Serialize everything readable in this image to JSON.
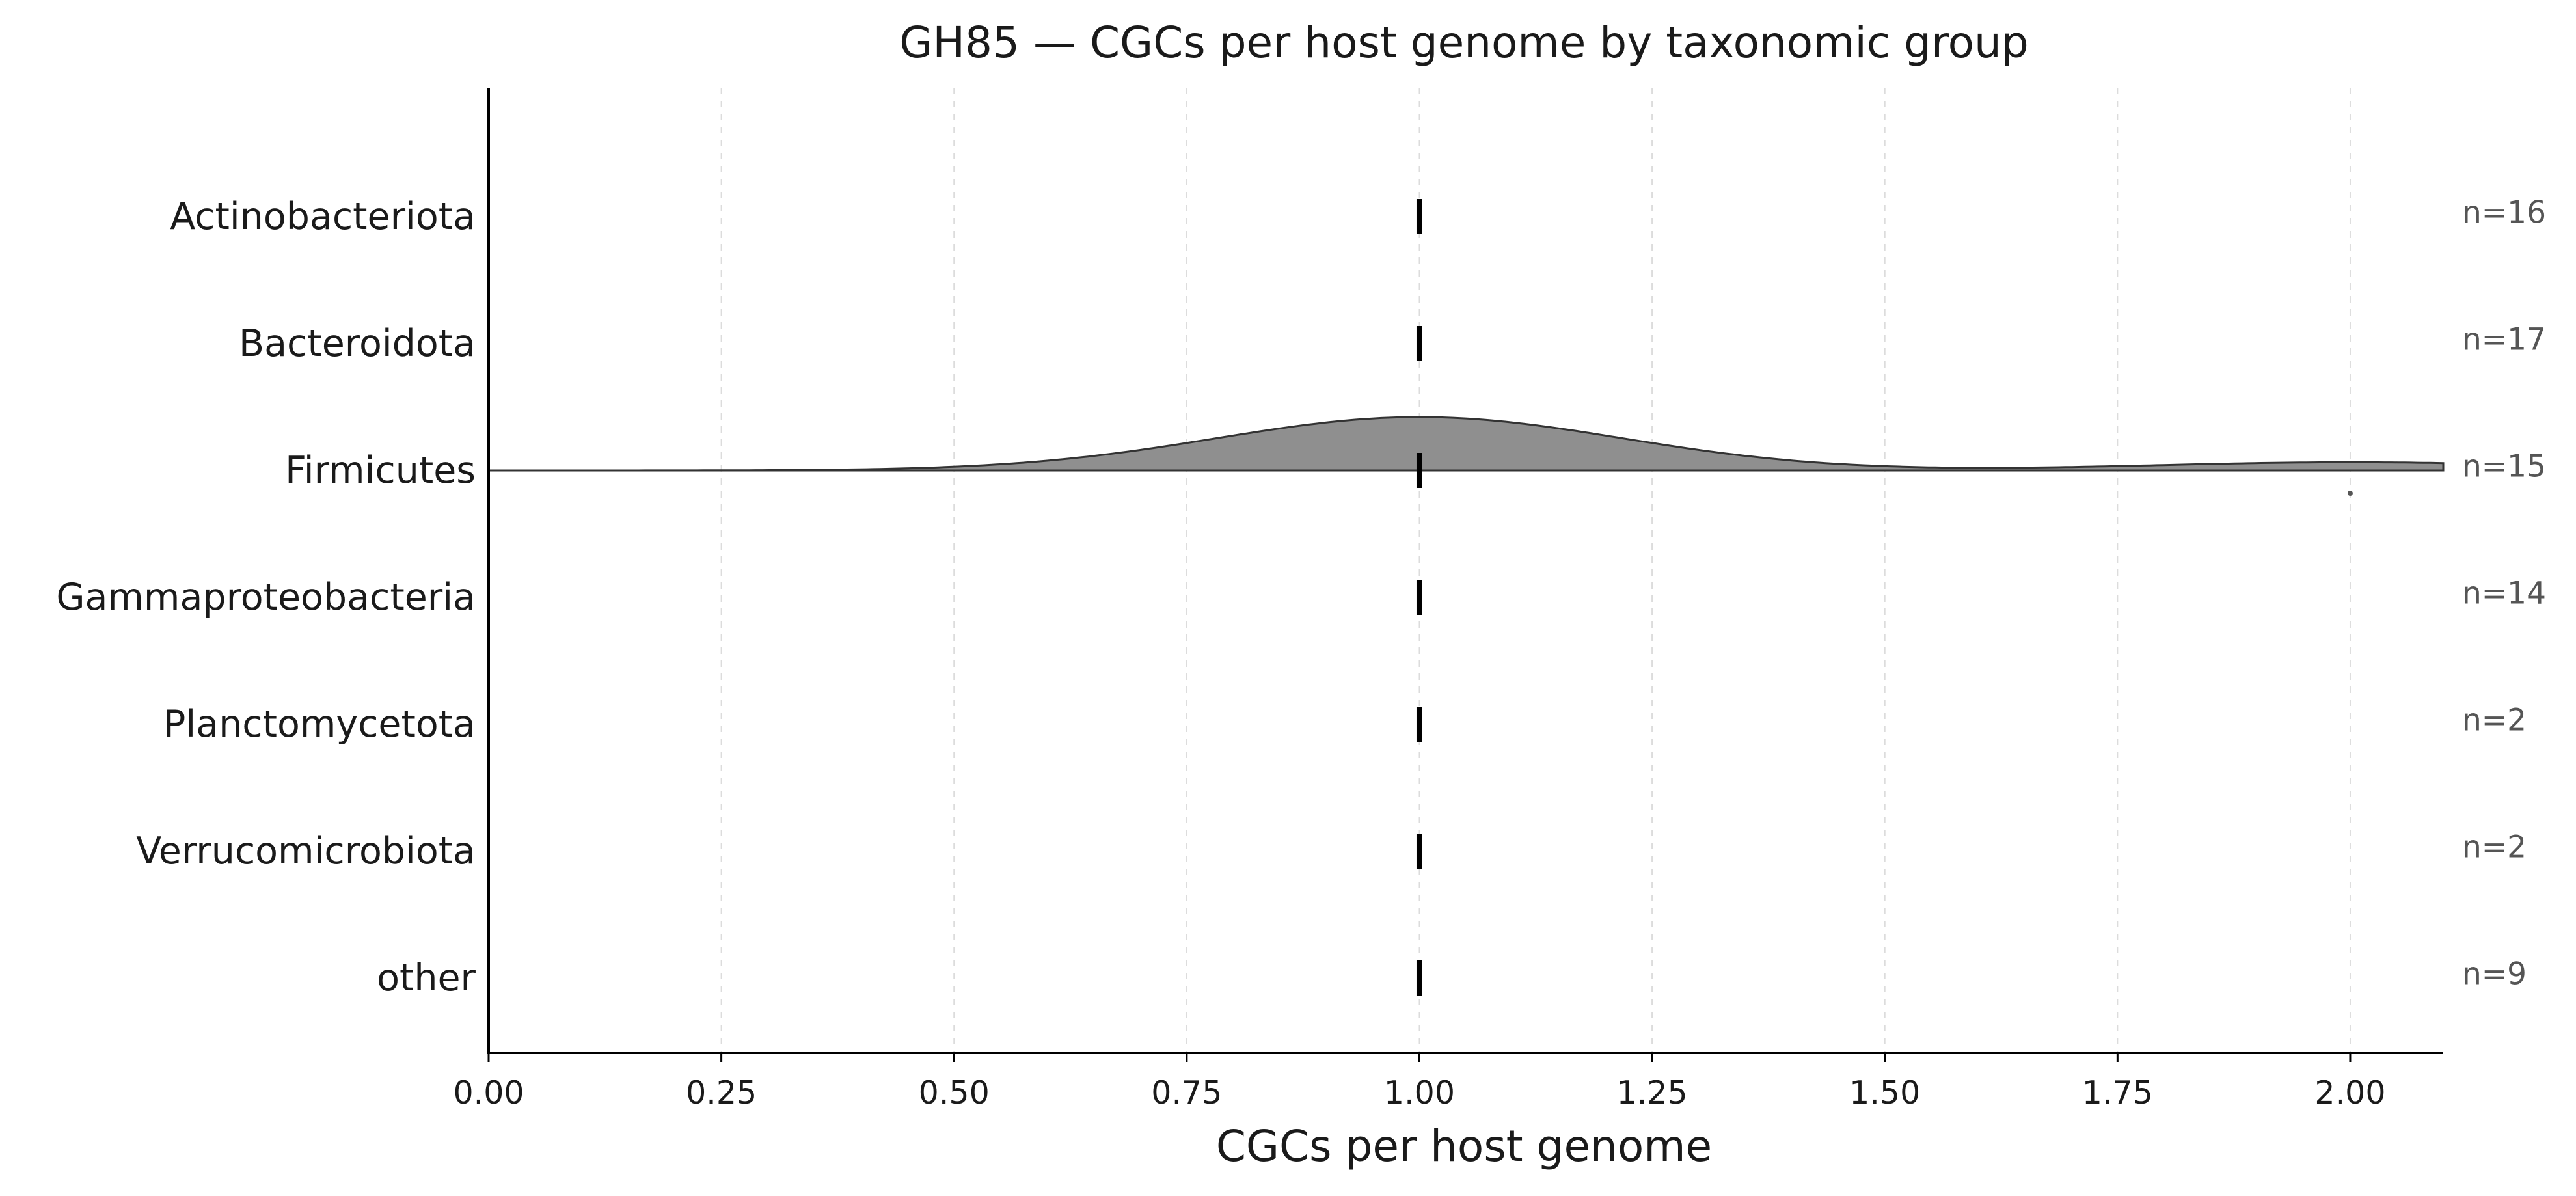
{
  "chart_data": {
    "type": "ridgeline",
    "title": "GH85 — CGCs per host genome by taxonomic group",
    "xlabel": "CGCs per host genome",
    "xlim": [
      0,
      2.1
    ],
    "xticks": [
      "0.00",
      "0.25",
      "0.50",
      "0.75",
      "1.00",
      "1.25",
      "1.50",
      "1.75",
      "2.00"
    ],
    "xgrid": true,
    "fill_color": "#8f8f8f",
    "line_color": "#333333",
    "groups": [
      {
        "name": "Actinobacteriota",
        "n_label": "n=16",
        "median": 1.0,
        "values": [
          1,
          1,
          1,
          1,
          1,
          1,
          1,
          1,
          1,
          1,
          1,
          1,
          1,
          1,
          1,
          1
        ]
      },
      {
        "name": "Bacteroidota",
        "n_label": "n=17",
        "median": 1.0,
        "values": [
          1,
          1,
          1,
          1,
          1,
          1,
          1,
          1,
          1,
          1,
          1,
          1,
          1,
          1,
          1,
          1,
          1
        ]
      },
      {
        "name": "Firmicutes",
        "n_label": "n=15",
        "median": 1.0,
        "values": [
          1,
          1,
          1,
          1,
          1,
          1,
          1,
          1,
          1,
          1,
          1,
          1,
          1,
          2,
          2
        ],
        "outliers": [
          2.0
        ]
      },
      {
        "name": "Gammaproteobacteria",
        "n_label": "n=14",
        "median": 1.0,
        "values": [
          1,
          1,
          1,
          1,
          1,
          1,
          1,
          1,
          1,
          1,
          1,
          1,
          1,
          1
        ]
      },
      {
        "name": "Planctomycetota",
        "n_label": "n=2",
        "median": 1.0,
        "values": [
          1,
          1
        ]
      },
      {
        "name": "Verrucomicrobiota",
        "n_label": "n=2",
        "median": 1.0,
        "values": [
          1,
          1
        ]
      },
      {
        "name": "other",
        "n_label": "n=9",
        "median": 1.0,
        "values": [
          1,
          1,
          1,
          1,
          1,
          1,
          1,
          1,
          1
        ]
      }
    ]
  }
}
